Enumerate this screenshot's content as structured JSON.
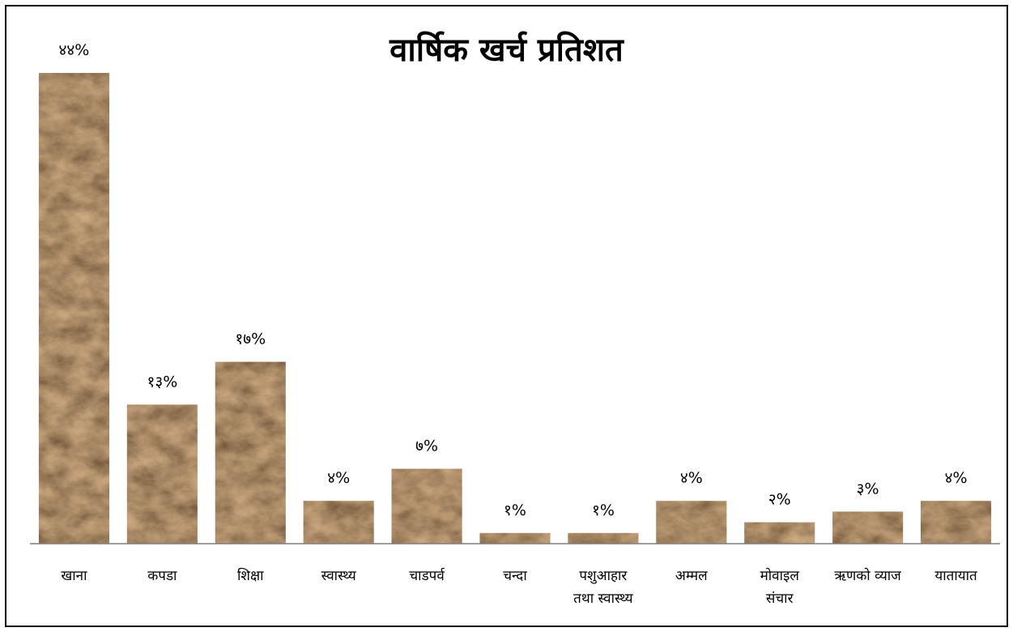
{
  "chart_data": {
    "type": "bar",
    "title": "वार्षिक खर्च प्रतिशत",
    "xlabel": "",
    "ylabel": "",
    "grid": false,
    "legend": "none",
    "categories": [
      [
        "खाना"
      ],
      [
        "कपडा"
      ],
      [
        "शिक्षा"
      ],
      [
        "स्वास्थ्य"
      ],
      [
        "चाडपर्व"
      ],
      [
        "चन्दा"
      ],
      [
        "पशुआहार",
        "तथा स्वास्थ्य"
      ],
      [
        "अम्मल"
      ],
      [
        "मोवाइल",
        "संचार"
      ],
      [
        "ऋणको व्याज"
      ],
      [
        "यातायात"
      ]
    ],
    "values": [
      44,
      13,
      17,
      4,
      7,
      1,
      1,
      4,
      2,
      3,
      4
    ],
    "value_labels": [
      "४४%",
      "१३%",
      "१७%",
      "४%",
      "७%",
      "१%",
      "१%",
      "४%",
      "२%",
      "३%",
      "४%"
    ],
    "ylim": [
      0,
      44
    ],
    "bar_color": "#5a3a20",
    "axis_color": "#7f7f7f"
  }
}
